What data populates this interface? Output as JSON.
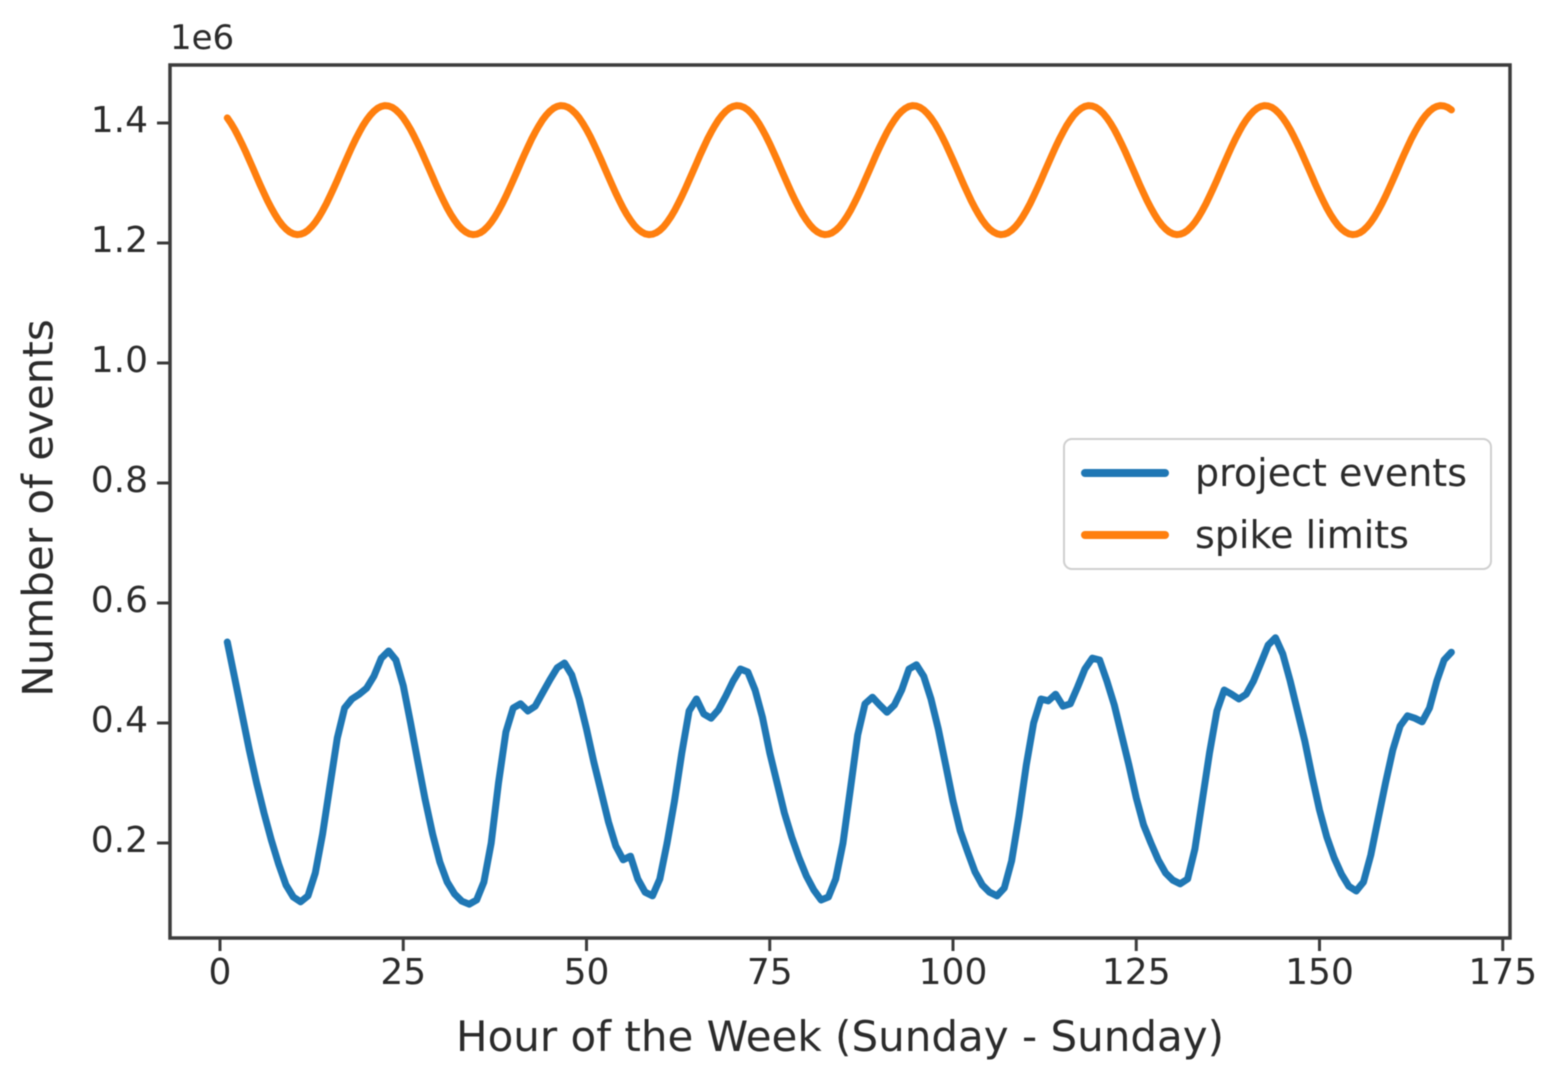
{
  "figure": {
    "background": "#ffffff",
    "frame_color": "#3c3c3c",
    "text_color": "#2b2b2b",
    "legend_border_color": "#cfcfcf"
  },
  "chart_data": {
    "type": "line",
    "title": "",
    "xlabel": "Hour of the Week (Sunday - Sunday)",
    "ylabel": "Number of events",
    "y_offset_label": "1e6",
    "y_unit": "1e6 events",
    "grid": false,
    "x_ticks": [
      0,
      25,
      50,
      75,
      100,
      125,
      150,
      175
    ],
    "y_ticks": [
      "0.2",
      "0.4",
      "0.6",
      "0.8",
      "1.0",
      "1.2",
      "1.4"
    ],
    "y_tick_values_1e6": [
      0.2,
      0.4,
      0.6,
      0.8,
      1.0,
      1.2,
      1.4
    ],
    "xlim_hours": [
      -6.6,
      176.0
    ],
    "ylim_1e6": [
      0.042,
      1.497
    ],
    "legend": {
      "position": "center right",
      "entries": [
        "project events",
        "spike limits"
      ]
    },
    "series": [
      {
        "name": "project events",
        "color": "#1f77b4",
        "x_start_hour": 1,
        "x_step_hours": 1,
        "values_1e6": [
          0.535,
          0.475,
          0.415,
          0.355,
          0.3,
          0.25,
          0.205,
          0.165,
          0.13,
          0.11,
          0.102,
          0.112,
          0.15,
          0.215,
          0.295,
          0.375,
          0.425,
          0.44,
          0.448,
          0.458,
          0.478,
          0.508,
          0.52,
          0.505,
          0.462,
          0.4,
          0.335,
          0.272,
          0.215,
          0.168,
          0.135,
          0.115,
          0.103,
          0.098,
          0.105,
          0.135,
          0.2,
          0.3,
          0.385,
          0.425,
          0.432,
          0.42,
          0.428,
          0.45,
          0.472,
          0.492,
          0.5,
          0.48,
          0.44,
          0.39,
          0.335,
          0.285,
          0.235,
          0.195,
          0.172,
          0.178,
          0.14,
          0.118,
          0.112,
          0.14,
          0.2,
          0.27,
          0.35,
          0.42,
          0.44,
          0.415,
          0.408,
          0.422,
          0.445,
          0.47,
          0.49,
          0.485,
          0.455,
          0.41,
          0.35,
          0.3,
          0.25,
          0.21,
          0.175,
          0.145,
          0.122,
          0.105,
          0.11,
          0.14,
          0.2,
          0.29,
          0.38,
          0.432,
          0.443,
          0.43,
          0.418,
          0.43,
          0.455,
          0.49,
          0.497,
          0.478,
          0.44,
          0.39,
          0.33,
          0.27,
          0.22,
          0.185,
          0.152,
          0.13,
          0.118,
          0.112,
          0.125,
          0.17,
          0.245,
          0.33,
          0.4,
          0.44,
          0.437,
          0.448,
          0.428,
          0.432,
          0.46,
          0.49,
          0.508,
          0.505,
          0.47,
          0.43,
          0.38,
          0.33,
          0.275,
          0.23,
          0.2,
          0.172,
          0.15,
          0.138,
          0.132,
          0.14,
          0.19,
          0.27,
          0.35,
          0.42,
          0.455,
          0.448,
          0.44,
          0.448,
          0.47,
          0.5,
          0.53,
          0.542,
          0.515,
          0.47,
          0.42,
          0.37,
          0.31,
          0.255,
          0.21,
          0.175,
          0.148,
          0.128,
          0.12,
          0.135,
          0.18,
          0.24,
          0.3,
          0.355,
          0.395,
          0.412,
          0.408,
          0.402,
          0.425,
          0.47,
          0.505,
          0.518
        ]
      },
      {
        "name": "spike limits",
        "color": "#ff7f0e",
        "model": "sinusoid",
        "midline_1e6": 1.3215,
        "amplitude_1e6": 0.1075,
        "period_hours": 24,
        "peak_hour": 22.6,
        "min_value_1e6": 1.214,
        "max_value_1e6": 1.429,
        "x_start_hour": 1,
        "x_end_hour": 168
      }
    ]
  }
}
